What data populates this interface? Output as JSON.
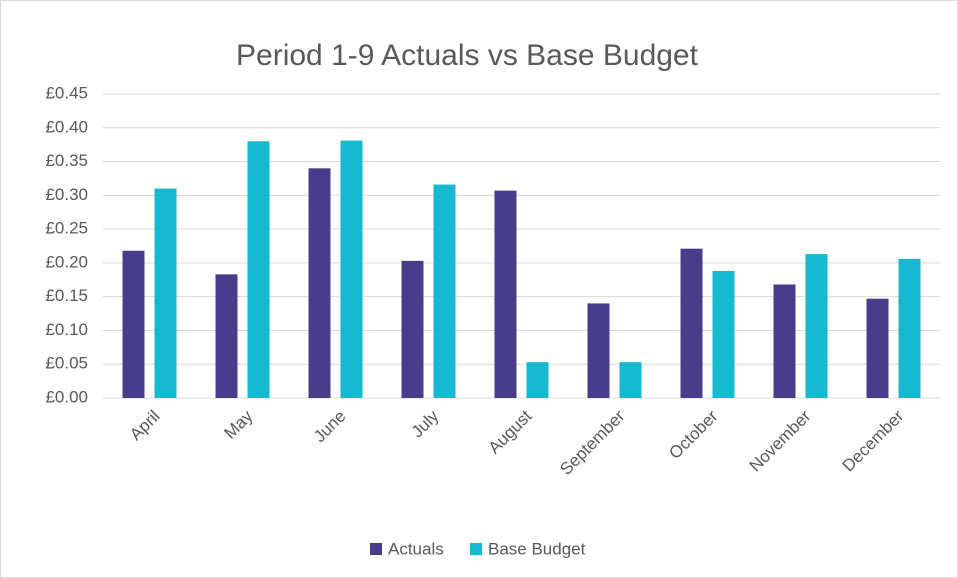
{
  "chart_data": {
    "type": "bar",
    "title": "Period 1-9 Actuals vs Base Budget",
    "categories": [
      "April",
      "May",
      "June",
      "July",
      "August",
      "September",
      "October",
      "November",
      "December"
    ],
    "series": [
      {
        "name": "Actuals",
        "color": "#483d8b",
        "values": [
          0.218,
          0.183,
          0.34,
          0.203,
          0.307,
          0.14,
          0.221,
          0.168,
          0.147
        ]
      },
      {
        "name": "Base Budget",
        "color": "#17b9d0",
        "values": [
          0.31,
          0.38,
          0.381,
          0.316,
          0.053,
          0.053,
          0.188,
          0.213,
          0.206
        ]
      }
    ],
    "ylim": [
      0,
      0.45
    ],
    "yticks": [
      {
        "value": 0,
        "label": "£0.00"
      },
      {
        "value": 0.05,
        "label": "£0.05"
      },
      {
        "value": 0.1,
        "label": "£0.10"
      },
      {
        "value": 0.15,
        "label": "£0.15"
      },
      {
        "value": 0.2,
        "label": "£0.20"
      },
      {
        "value": 0.25,
        "label": "£0.25"
      },
      {
        "value": 0.3,
        "label": "£0.30"
      },
      {
        "value": 0.35,
        "label": "£0.35"
      },
      {
        "value": 0.4,
        "label": "£0.40"
      },
      {
        "value": 0.45,
        "label": "£0.45"
      }
    ],
    "grid": true,
    "legend": "bottom"
  }
}
